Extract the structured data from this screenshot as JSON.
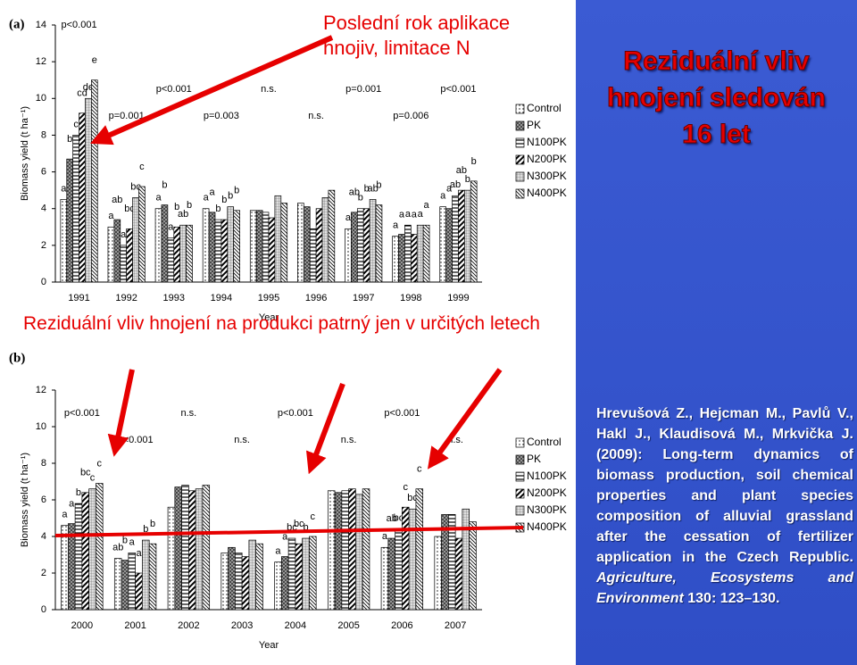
{
  "slide": {
    "title": "Reziduální vliv hnojení sledován 16 let",
    "callout_top": "Poslední rok aplikace hnojiv, limitace N",
    "callout_middle": "Reziduální vliv hnojení na produkci patrný jen v určitých letech",
    "citation": {
      "text": "Hrevušová Z., Hejcman M., Pavlů V., Hakl J., Klaudisová M., Mrkvička J. (2009): Long-term dynamics of biomass production, soil chemical properties and plant species composition of alluvial grassland after the cessation of fertilizer application in the Czech Republic.",
      "journal": "Agriculture, Ecosystems and Environment",
      "pages": "130: 123–130."
    }
  },
  "chart_data": [
    {
      "type": "bar",
      "label": "(a)",
      "y_label": "Biomass yield (t ha⁻¹)",
      "x_label": "Year",
      "categories": [
        "1991",
        "1992",
        "1993",
        "1994",
        "1995",
        "1996",
        "1997",
        "1998",
        "1999"
      ],
      "p_values": [
        "p<0.001",
        "p=0.001",
        "p<0.001",
        "p=0.003",
        "n.s.",
        "n.s.",
        "p=0.001",
        "p=0.006",
        "p<0.001"
      ],
      "ylim": [
        0,
        14
      ],
      "yticks": [
        0,
        2,
        4,
        6,
        8,
        10,
        12,
        14
      ],
      "series": [
        {
          "name": "Control",
          "pattern": "dots",
          "values": [
            4.5,
            3.0,
            4.0,
            4.0,
            3.9,
            4.3,
            2.9,
            2.5,
            4.1
          ],
          "letters": [
            "a",
            "a",
            "a",
            "a",
            null,
            null,
            "a",
            "a",
            "a"
          ]
        },
        {
          "name": "PK",
          "pattern": "cross",
          "values": [
            6.7,
            3.4,
            4.2,
            3.8,
            3.9,
            4.1,
            3.8,
            2.6,
            4.0
          ],
          "letters": [
            "b",
            "ab",
            "b",
            "a",
            null,
            null,
            "ab",
            "a",
            "a"
          ]
        },
        {
          "name": "N100PK",
          "pattern": "hlines",
          "values": [
            8.0,
            2.0,
            2.4,
            3.4,
            3.8,
            2.9,
            4.0,
            3.1,
            4.7
          ],
          "letters": [
            "c",
            "a",
            "a",
            "b",
            null,
            null,
            "b",
            "a",
            "ab"
          ]
        },
        {
          "name": "N200PK",
          "pattern": "bold-diag",
          "values": [
            9.2,
            2.9,
            3.0,
            3.4,
            3.5,
            4.0,
            4.0,
            2.6,
            5.0
          ],
          "letters": [
            "cd",
            "bc",
            "b",
            "b",
            null,
            null,
            "b",
            "a",
            "ab"
          ]
        },
        {
          "name": "N300PK",
          "pattern": "grid",
          "values": [
            10.0,
            4.6,
            3.1,
            4.1,
            4.7,
            4.6,
            4.5,
            3.1,
            5.0
          ],
          "letters": [
            "de",
            "bc",
            "ab",
            "b",
            null,
            null,
            "ab",
            "a",
            "b"
          ]
        },
        {
          "name": "N400PK",
          "pattern": "diag",
          "values": [
            11.0,
            5.2,
            3.1,
            3.9,
            4.3,
            5.0,
            4.2,
            3.1,
            5.5
          ],
          "letters": [
            "e",
            "c",
            "b",
            "b",
            null,
            null,
            "b",
            "a",
            "b"
          ]
        }
      ]
    },
    {
      "type": "bar",
      "label": "(b)",
      "y_label": "Biomass yield (t ha⁻¹)",
      "x_label": "Year",
      "categories": [
        "2000",
        "2001",
        "2002",
        "2003",
        "2004",
        "2005",
        "2006",
        "2007"
      ],
      "p_values": [
        "p<0.001",
        "p<0.001",
        "n.s.",
        "n.s.",
        "p<0.001",
        "n.s.",
        "p<0.001",
        "n.s."
      ],
      "ylim": [
        0,
        12
      ],
      "yticks": [
        0,
        2,
        4,
        6,
        8,
        10,
        12
      ],
      "series": [
        {
          "name": "Control",
          "pattern": "dots",
          "values": [
            4.6,
            2.8,
            5.6,
            3.1,
            2.6,
            6.5,
            3.4,
            4.0
          ],
          "letters": [
            "a",
            "ab",
            null,
            null,
            "a",
            null,
            "a",
            null
          ]
        },
        {
          "name": "PK",
          "pattern": "cross",
          "values": [
            4.7,
            2.7,
            6.7,
            3.4,
            2.9,
            6.4,
            3.9,
            5.2
          ],
          "letters": [
            "a",
            "b",
            null,
            null,
            "a",
            null,
            "ab",
            null
          ]
        },
        {
          "name": "N100PK",
          "pattern": "hlines",
          "values": [
            5.8,
            3.1,
            6.8,
            3.1,
            3.9,
            6.5,
            4.4,
            5.2
          ],
          "letters": [
            "b",
            "a",
            null,
            null,
            "bc",
            null,
            "bc",
            null
          ]
        },
        {
          "name": "N200PK",
          "pattern": "bold-diag",
          "values": [
            6.4,
            2.0,
            6.5,
            2.9,
            3.6,
            6.6,
            5.6,
            3.9
          ],
          "letters": [
            "bc",
            "a",
            null,
            null,
            "bc",
            null,
            "c",
            null
          ]
        },
        {
          "name": "N300PK",
          "pattern": "grid",
          "values": [
            6.6,
            3.8,
            6.6,
            3.8,
            3.9,
            6.3,
            5.5,
            5.5
          ],
          "letters": [
            "c",
            "b",
            null,
            null,
            "b",
            null,
            "bc",
            null
          ]
        },
        {
          "name": "N400PK",
          "pattern": "diag",
          "values": [
            6.9,
            3.6,
            6.8,
            3.6,
            4.0,
            6.6,
            6.6,
            4.8
          ],
          "letters": [
            "c",
            "b",
            null,
            null,
            "c",
            null,
            "c",
            null
          ]
        }
      ]
    }
  ]
}
